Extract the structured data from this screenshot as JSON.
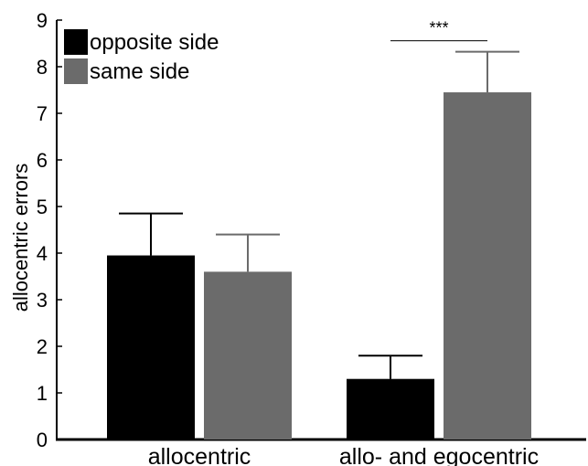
{
  "chart_data": {
    "type": "bar",
    "title": "",
    "xlabel": "",
    "ylabel": "allocentric errors",
    "categories": [
      "allocentric",
      "allo- and egocentric"
    ],
    "series": [
      {
        "name": "opposite side",
        "values": [
          3.95,
          1.3
        ],
        "errors": [
          0.9,
          0.5
        ],
        "color": "#000000"
      },
      {
        "name": "same side",
        "values": [
          3.6,
          7.45
        ],
        "errors": [
          0.8,
          0.87
        ],
        "color": "#6b6b6b"
      }
    ],
    "ylim": [
      0,
      9
    ],
    "yticks": [
      "0",
      "1",
      "2",
      "3",
      "4",
      "5",
      "6",
      "7",
      "8",
      "9"
    ],
    "grid": false,
    "legend_position": "top-left",
    "annotations": [
      {
        "text": "***",
        "category": "allo- and egocentric"
      }
    ]
  }
}
